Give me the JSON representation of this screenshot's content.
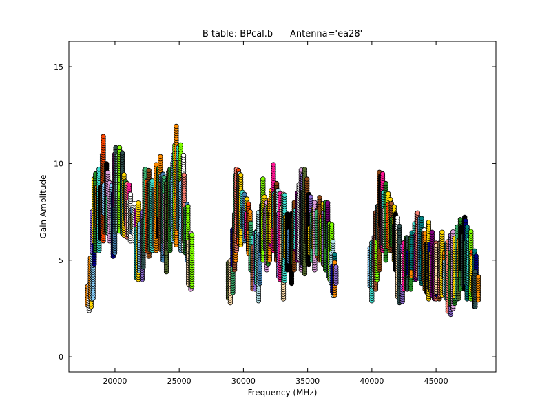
{
  "chart_data": {
    "type": "scatter",
    "title": "B table: BPcal.b      Antenna='ea28'",
    "xlabel": "Frequency (MHz)",
    "ylabel": "Gain Amplitude",
    "xlim": [
      16410,
      49660
    ],
    "ylim": [
      -0.78,
      16.32
    ],
    "xticks": [
      20000,
      25000,
      30000,
      35000,
      40000,
      45000
    ],
    "yticks": [
      0,
      5,
      10,
      15
    ],
    "grid": false,
    "marker": "circle",
    "marker_edge_color": "#000000",
    "palette": [
      "#2f4f4f",
      "#fa8072",
      "#40e0d0",
      "#8b4513",
      "#9370db",
      "#ff8c00",
      "#00008b",
      "#7fff00",
      "#dda0dd",
      "#556b2f",
      "#ff4500",
      "#b0e0e6",
      "#ffdead",
      "#008080",
      "#ff1493",
      "#000000",
      "#4682b4",
      "#3cb371",
      "#ffd700",
      "#800080",
      "#a0522d",
      "#ffffff",
      "#228b22",
      "#87cefa"
    ],
    "columns_note_units": "each column: frequency MHz, min and max gain amplitude",
    "columns": [
      [
        18000,
        2.4,
        3.8
      ],
      [
        18200,
        3.0,
        5.7
      ],
      [
        18400,
        4.8,
        9.0
      ],
      [
        18500,
        5.5,
        9.5
      ],
      [
        18800,
        5.5,
        9.8
      ],
      [
        19100,
        6.0,
        11.4
      ],
      [
        19300,
        6.5,
        10.0
      ],
      [
        19600,
        6.0,
        9.0
      ],
      [
        19900,
        5.2,
        8.5
      ],
      [
        20100,
        6.5,
        10.9
      ],
      [
        20400,
        6.5,
        10.9
      ],
      [
        20700,
        6.3,
        9.5
      ],
      [
        21000,
        6.2,
        9.0
      ],
      [
        21200,
        6.0,
        8.5
      ],
      [
        21500,
        6.0,
        8.0
      ],
      [
        21800,
        4.0,
        8.0
      ],
      [
        22100,
        4.0,
        7.5
      ],
      [
        22400,
        5.5,
        9.8
      ],
      [
        22600,
        5.2,
        9.7
      ],
      [
        22900,
        5.5,
        9.2
      ],
      [
        23200,
        5.5,
        10.0
      ],
      [
        23500,
        5.8,
        10.4
      ],
      [
        23700,
        5.0,
        9.5
      ],
      [
        24000,
        4.4,
        9.0
      ],
      [
        24300,
        5.5,
        9.8
      ],
      [
        24600,
        6.0,
        10.5
      ],
      [
        24800,
        5.8,
        12.0
      ],
      [
        25100,
        5.8,
        11.0
      ],
      [
        25300,
        5.5,
        10.5
      ],
      [
        25600,
        5.0,
        8.0
      ],
      [
        25900,
        3.5,
        6.5
      ],
      [
        29000,
        2.8,
        5.0
      ],
      [
        29300,
        4.5,
        7.5
      ],
      [
        29500,
        5.5,
        9.7
      ],
      [
        29800,
        5.8,
        9.5
      ],
      [
        30100,
        6.0,
        8.5
      ],
      [
        30400,
        5.5,
        8.0
      ],
      [
        30600,
        4.5,
        7.0
      ],
      [
        30900,
        3.5,
        6.5
      ],
      [
        31200,
        2.9,
        7.5
      ],
      [
        31500,
        5.0,
        9.2
      ],
      [
        31800,
        4.5,
        8.0
      ],
      [
        32000,
        5.0,
        8.2
      ],
      [
        32300,
        5.5,
        10.0
      ],
      [
        32600,
        5.0,
        9.0
      ],
      [
        32900,
        4.0,
        8.5
      ],
      [
        33100,
        3.0,
        8.5
      ],
      [
        33400,
        4.5,
        7.5
      ],
      [
        33700,
        3.8,
        7.5
      ],
      [
        34000,
        4.5,
        8.0
      ],
      [
        34200,
        5.0,
        8.5
      ],
      [
        34500,
        4.5,
        9.7
      ],
      [
        34800,
        4.3,
        9.7
      ],
      [
        35100,
        4.8,
        8.5
      ],
      [
        35300,
        5.0,
        7.5
      ],
      [
        35600,
        4.5,
        8.0
      ],
      [
        35900,
        5.0,
        8.3
      ],
      [
        36200,
        4.8,
        8.0
      ],
      [
        36400,
        4.5,
        8.1
      ],
      [
        36700,
        4.0,
        7.0
      ],
      [
        37000,
        3.2,
        6.0
      ],
      [
        37100,
        3.2,
        5.0
      ],
      [
        40000,
        2.9,
        6.0
      ],
      [
        40300,
        3.5,
        7.5
      ],
      [
        40600,
        4.5,
        9.6
      ],
      [
        40800,
        5.5,
        9.5
      ],
      [
        41100,
        5.0,
        9.0
      ],
      [
        41400,
        5.5,
        8.2
      ],
      [
        41700,
        5.0,
        7.8
      ],
      [
        41900,
        4.5,
        7.5
      ],
      [
        42200,
        2.8,
        6.8
      ],
      [
        42500,
        3.5,
        6.0
      ],
      [
        42800,
        3.5,
        6.2
      ],
      [
        43000,
        3.5,
        6.2
      ],
      [
        43300,
        4.0,
        7.0
      ],
      [
        43600,
        4.2,
        7.5
      ],
      [
        43900,
        3.8,
        7.2
      ],
      [
        44100,
        3.5,
        6.5
      ],
      [
        44400,
        3.0,
        7.0
      ],
      [
        44700,
        3.2,
        6.5
      ],
      [
        45000,
        3.0,
        6.0
      ],
      [
        45200,
        3.0,
        6.0
      ],
      [
        45500,
        3.2,
        6.5
      ],
      [
        45800,
        3.0,
        6.0
      ],
      [
        46100,
        2.2,
        6.3
      ],
      [
        46300,
        2.5,
        6.5
      ],
      [
        46600,
        3.0,
        6.8
      ],
      [
        46900,
        3.5,
        7.2
      ],
      [
        47200,
        3.5,
        7.3
      ],
      [
        47400,
        3.0,
        6.8
      ],
      [
        47700,
        3.0,
        6.5
      ],
      [
        48000,
        2.6,
        5.5
      ],
      [
        48100,
        2.6,
        4.5
      ]
    ]
  }
}
